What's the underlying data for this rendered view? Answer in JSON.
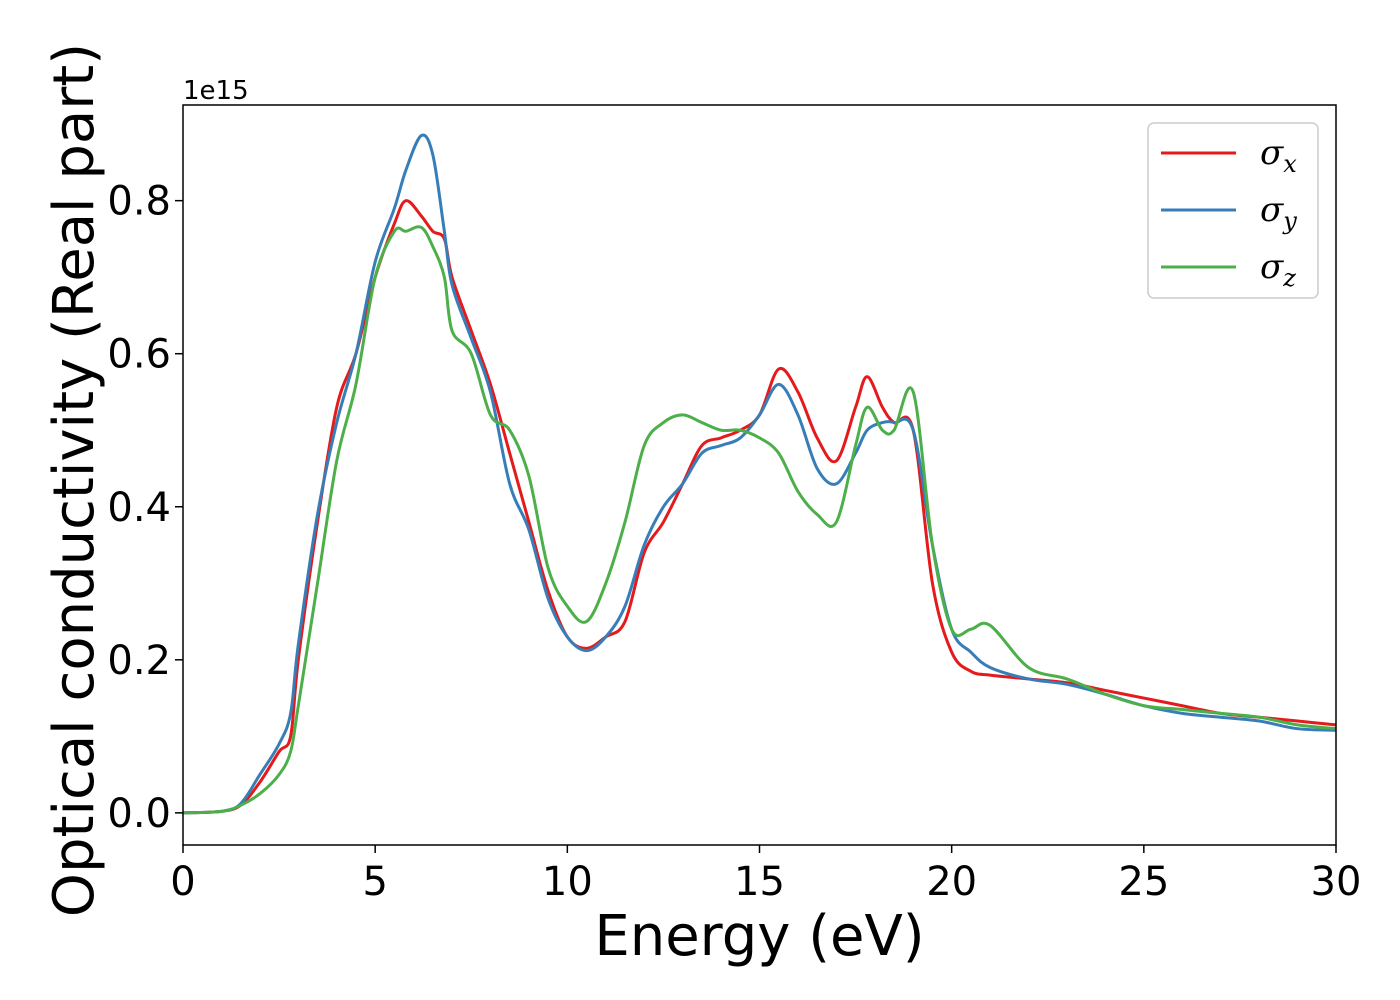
{
  "chart_data": {
    "type": "line",
    "title": "",
    "xlabel": "Energy (eV)",
    "ylabel": "Optical conductivity (Real part)",
    "y_offset_label": "1e15",
    "xlim": [
      0,
      30
    ],
    "ylim": [
      -0.042,
      0.925
    ],
    "xticks": [
      "0",
      "5",
      "10",
      "15",
      "20",
      "25",
      "30"
    ],
    "yticks": [
      "0.0",
      "0.2",
      "0.4",
      "0.6",
      "0.8"
    ],
    "grid": false,
    "legend_position": "top-right",
    "series": [
      {
        "name": "σx",
        "symbol": "σ",
        "subscript": "x",
        "color": "#e41a1c",
        "x": [
          0,
          1,
          1.5,
          2,
          2.5,
          2.8,
          3,
          3.5,
          4,
          4.5,
          5,
          5.5,
          5.8,
          6.2,
          6.5,
          6.8,
          7,
          7.5,
          8,
          8.5,
          9,
          9.5,
          10,
          10.5,
          11,
          11.5,
          12,
          12.5,
          13,
          13.5,
          14,
          14.5,
          15,
          15.5,
          16,
          16.5,
          17,
          17.5,
          17.8,
          18.2,
          18.5,
          19,
          19.5,
          20,
          20.5,
          21,
          22,
          23,
          24,
          25,
          26,
          27,
          28,
          29,
          30
        ],
        "y": [
          0,
          0.002,
          0.01,
          0.04,
          0.08,
          0.1,
          0.2,
          0.38,
          0.53,
          0.6,
          0.7,
          0.77,
          0.8,
          0.78,
          0.76,
          0.75,
          0.7,
          0.63,
          0.56,
          0.47,
          0.38,
          0.29,
          0.23,
          0.215,
          0.23,
          0.25,
          0.34,
          0.38,
          0.43,
          0.48,
          0.49,
          0.5,
          0.52,
          0.58,
          0.55,
          0.49,
          0.46,
          0.53,
          0.57,
          0.53,
          0.51,
          0.5,
          0.3,
          0.21,
          0.185,
          0.18,
          0.175,
          0.17,
          0.16,
          0.15,
          0.14,
          0.13,
          0.125,
          0.12,
          0.115
        ]
      },
      {
        "name": "σy",
        "symbol": "σ",
        "subscript": "y",
        "color": "#377eb8",
        "x": [
          0,
          1,
          1.5,
          2,
          2.5,
          2.8,
          3,
          3.5,
          4,
          4.5,
          5,
          5.5,
          5.8,
          6.2,
          6.5,
          6.8,
          7,
          7.5,
          8,
          8.5,
          9,
          9.5,
          10,
          10.5,
          11,
          11.5,
          12,
          12.5,
          13,
          13.5,
          14,
          14.5,
          15,
          15.5,
          16,
          16.5,
          17,
          17.5,
          17.8,
          18.2,
          18.5,
          19,
          19.5,
          20,
          20.5,
          21,
          22,
          23,
          24,
          25,
          26,
          27,
          28,
          29,
          30
        ],
        "y": [
          0,
          0.002,
          0.012,
          0.05,
          0.09,
          0.13,
          0.22,
          0.39,
          0.51,
          0.6,
          0.72,
          0.79,
          0.84,
          0.885,
          0.86,
          0.76,
          0.69,
          0.62,
          0.55,
          0.43,
          0.37,
          0.28,
          0.23,
          0.212,
          0.23,
          0.27,
          0.35,
          0.4,
          0.43,
          0.47,
          0.48,
          0.49,
          0.52,
          0.56,
          0.52,
          0.45,
          0.43,
          0.47,
          0.5,
          0.51,
          0.51,
          0.5,
          0.35,
          0.24,
          0.21,
          0.19,
          0.175,
          0.168,
          0.155,
          0.14,
          0.13,
          0.125,
          0.12,
          0.11,
          0.108
        ]
      },
      {
        "name": "σz",
        "symbol": "σ",
        "subscript": "z",
        "color": "#4daf4a",
        "x": [
          0,
          1,
          1.5,
          2,
          2.5,
          2.8,
          3,
          3.5,
          4,
          4.5,
          5,
          5.5,
          5.8,
          6.2,
          6.5,
          6.8,
          7,
          7.5,
          8,
          8.5,
          9,
          9.5,
          10,
          10.5,
          11,
          11.5,
          12,
          12.5,
          13,
          13.5,
          14,
          14.5,
          15,
          15.5,
          16,
          16.5,
          17,
          17.5,
          17.8,
          18.2,
          18.5,
          19,
          19.5,
          20,
          20.5,
          21,
          22,
          23,
          24,
          25,
          26,
          27,
          28,
          29,
          30
        ],
        "y": [
          0,
          0.002,
          0.01,
          0.025,
          0.05,
          0.08,
          0.14,
          0.3,
          0.46,
          0.56,
          0.7,
          0.76,
          0.76,
          0.765,
          0.74,
          0.7,
          0.63,
          0.6,
          0.52,
          0.5,
          0.44,
          0.32,
          0.27,
          0.25,
          0.3,
          0.38,
          0.48,
          0.51,
          0.52,
          0.51,
          0.5,
          0.5,
          0.49,
          0.47,
          0.42,
          0.39,
          0.38,
          0.48,
          0.53,
          0.5,
          0.5,
          0.55,
          0.35,
          0.24,
          0.24,
          0.245,
          0.19,
          0.175,
          0.155,
          0.14,
          0.135,
          0.13,
          0.125,
          0.115,
          0.11
        ]
      }
    ]
  }
}
